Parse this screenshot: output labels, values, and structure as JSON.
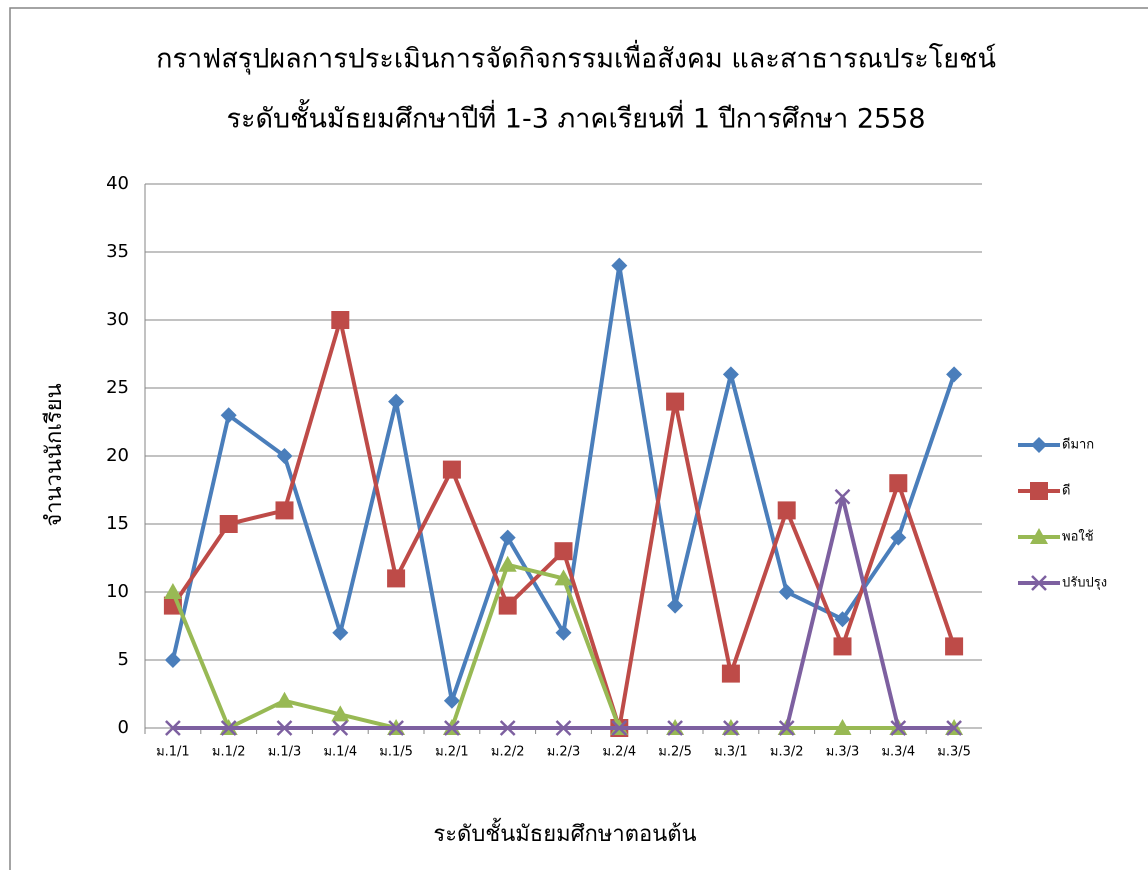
{
  "chart_data": {
    "type": "line",
    "title": [
      "กราฟสรุปผลการประเมินการจัดกิจกรรมเพื่อสังคม และสาธารณประโยชน์",
      "ระดับชั้นมัธยมศึกษาปีที่ 1-3 ภาคเรียนที่ 1 ปีการศึกษา 2558"
    ],
    "x_label": "ระดับชั้นมัธยมศึกษาตอนต้น",
    "y_label": "จำนวนนักเรียน",
    "categories": [
      "ม.1/1",
      "ม.1/2",
      "ม.1/3",
      "ม.1/4",
      "ม.1/5",
      "ม.2/1",
      "ม.2/2",
      "ม.2/3",
      "ม.2/4",
      "ม.2/5",
      "ม.3/1",
      "ม.3/2",
      "ม.3/3",
      "ม.3/4",
      "ม.3/5"
    ],
    "series": [
      {
        "name": "ดีมาก",
        "color": "#4a7ebb",
        "marker": "diamond",
        "values": [
          5,
          23,
          20,
          7,
          24,
          2,
          14,
          7,
          34,
          9,
          26,
          10,
          8,
          14,
          26
        ]
      },
      {
        "name": "ดี",
        "color": "#be4b48",
        "marker": "square",
        "values": [
          9,
          15,
          16,
          30,
          11,
          19,
          9,
          13,
          0,
          24,
          4,
          16,
          6,
          18,
          6
        ]
      },
      {
        "name": "พอใช้",
        "color": "#98b954",
        "marker": "triangle",
        "values": [
          10,
          0,
          2,
          1,
          0,
          0,
          12,
          11,
          0,
          0,
          0,
          0,
          0,
          0,
          0
        ]
      },
      {
        "name": "ปรับปรุง",
        "color": "#7d60a0",
        "marker": "x",
        "values": [
          0,
          0,
          0,
          0,
          0,
          0,
          0,
          0,
          0,
          0,
          0,
          0,
          17,
          0,
          0
        ]
      }
    ],
    "ylim": [
      0,
      40
    ],
    "yticks": [
      0,
      5,
      10,
      15,
      20,
      25,
      30,
      35,
      40
    ],
    "grid": true,
    "legend": "right"
  }
}
